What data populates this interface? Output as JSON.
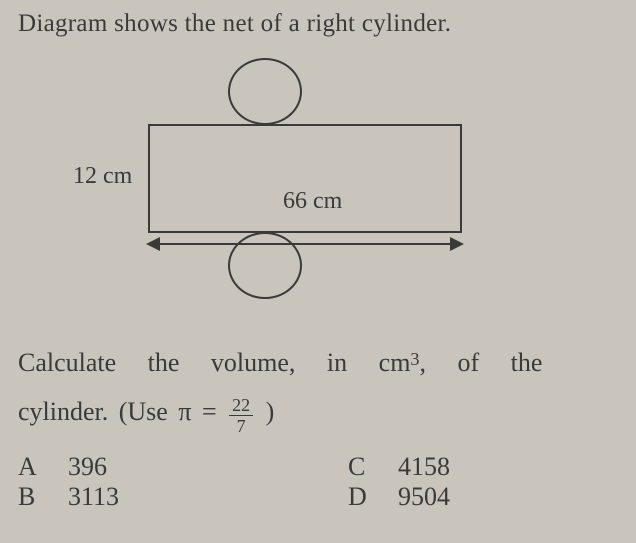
{
  "intro": "Diagram shows the net of a right cylinder.",
  "diagram": {
    "height_label": "12 cm",
    "width_label": "66 cm"
  },
  "question": {
    "line_a": "Calculate   the   volume,   in   cm",
    "sup": "3",
    "line_a_tail": ",   of   the",
    "line_b_pre": "cylinder. (Use π = ",
    "frac_num": "22",
    "frac_den": "7",
    "line_b_post": " )"
  },
  "options": {
    "A": {
      "letter": "A",
      "value": "396"
    },
    "B": {
      "letter": "B",
      "value": "3113"
    },
    "C": {
      "letter": "C",
      "value": "4158"
    },
    "D": {
      "letter": "D",
      "value": "9504"
    }
  }
}
